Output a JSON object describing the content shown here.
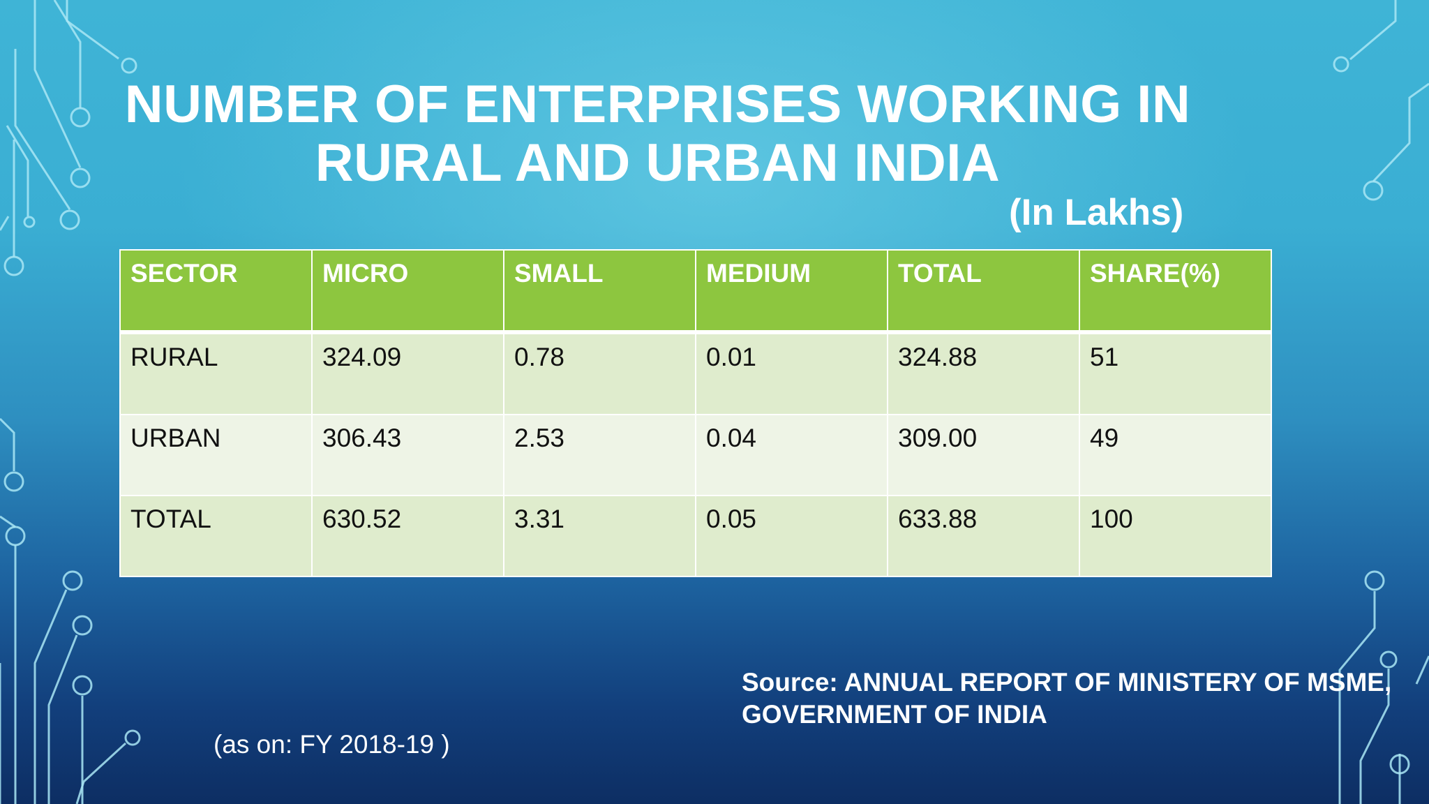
{
  "slide": {
    "title_line1": "NUMBER OF ENTERPRISES WORKING IN",
    "title_line2": "RURAL AND URBAN INDIA",
    "unit": "(In Lakhs)",
    "table": {
      "headers": [
        "SECTOR",
        "MICRO",
        "SMALL",
        "MEDIUM",
        "TOTAL",
        "SHARE(%)"
      ],
      "rows": [
        [
          "RURAL",
          "324.09",
          "0.78",
          "0.01",
          "324.88",
          "51"
        ],
        [
          "URBAN",
          "306.43",
          "2.53",
          "0.04",
          "309.00",
          "49"
        ],
        [
          "TOTAL",
          "630.52",
          "3.31",
          "0.05",
          "633.88",
          "100"
        ]
      ]
    },
    "source_line1": "Source: ANNUAL REPORT OF MINISTERY OF MSME,",
    "source_line2": "GOVERNMENT OF INDIA",
    "as_on": "(as on: FY 2018-19 )"
  },
  "colors": {
    "header_green": "#8dc63f",
    "row_light": "#dfeccd",
    "row_lighter": "#eef4e6",
    "circuit_lines": "#a9e6f4"
  }
}
